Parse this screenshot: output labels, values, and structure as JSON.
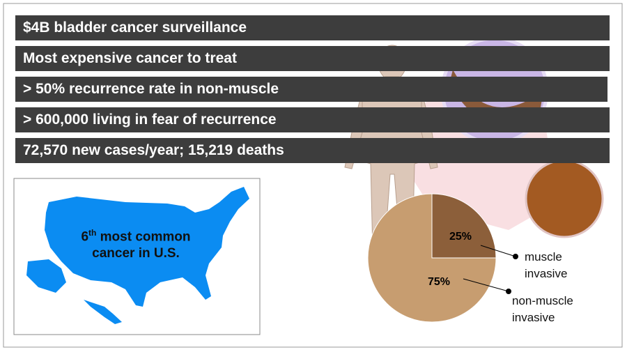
{
  "banners": [
    "$4B bladder cancer surveillance",
    "Most expensive cancer to treat",
    "> 50% recurrence rate in non-muscle",
    "> 600,000 living in fear of recurrence",
    "72,570 new cases/year;  15,219 deaths"
  ],
  "map": {
    "rank": "6",
    "rank_suffix": "th",
    "text": "most common cancer in U.S."
  },
  "chart_data": {
    "type": "pie",
    "categories": [
      "muscle invasive",
      "non-muscle invasive"
    ],
    "values": [
      25,
      75
    ],
    "value_labels": [
      "25%",
      "75%"
    ],
    "colors": [
      "#8c5f3a",
      "#c79d70"
    ]
  }
}
